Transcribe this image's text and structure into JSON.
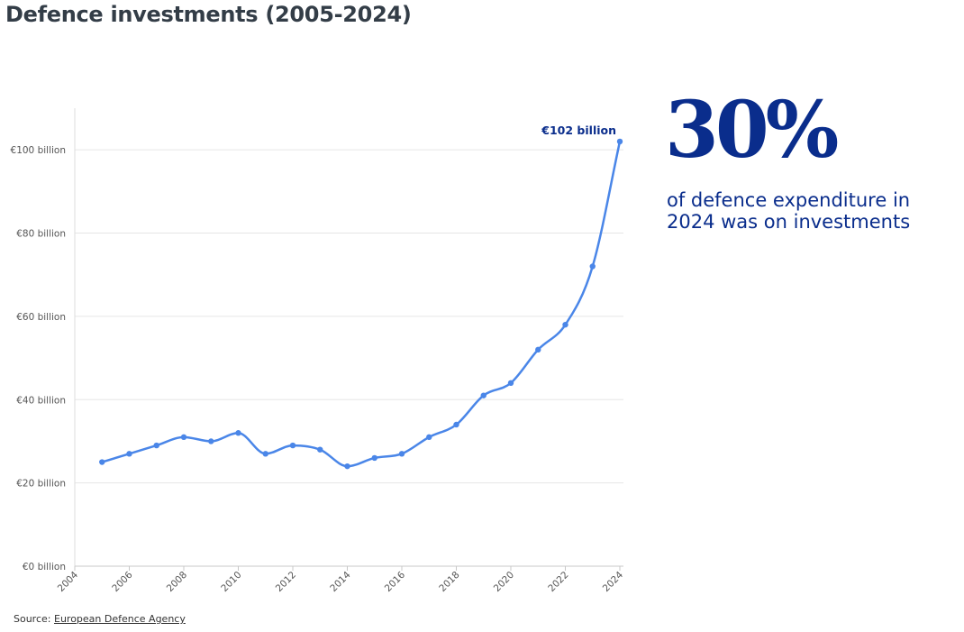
{
  "title": "Defence investments (2005-2024)",
  "highlight": {
    "value": "30%",
    "caption": "of defence expenditure in 2024 was on investments"
  },
  "source": {
    "prefix": "Source:",
    "link_text": "European Defence Agency"
  },
  "colors": {
    "line": "#4a86e8",
    "accent": "#0a2d8c",
    "grid": "#e6e6e6"
  },
  "chart_data": {
    "type": "line",
    "x": [
      2005,
      2006,
      2007,
      2008,
      2009,
      2010,
      2011,
      2012,
      2013,
      2014,
      2015,
      2016,
      2017,
      2018,
      2019,
      2020,
      2021,
      2022,
      2023,
      2024
    ],
    "series": [
      {
        "values": [
          25,
          27,
          29,
          31,
          30,
          32,
          27,
          29,
          28,
          24,
          26,
          27,
          31,
          34,
          41,
          44,
          52,
          58,
          72,
          102
        ]
      }
    ],
    "xlim": [
      2004,
      2024
    ],
    "ylim": [
      0,
      110
    ],
    "x_ticks": [
      "2004",
      "2006",
      "2008",
      "2010",
      "2012",
      "2014",
      "2016",
      "2018",
      "2020",
      "2022",
      "2024"
    ],
    "y_ticks": [
      {
        "value": 0,
        "label": "€0 billion"
      },
      {
        "value": 20,
        "label": "€20 billion"
      },
      {
        "value": 40,
        "label": "€40 billion"
      },
      {
        "value": 60,
        "label": "€60 billion"
      },
      {
        "value": 80,
        "label": "€80 billion"
      },
      {
        "value": 100,
        "label": "€100 billion"
      }
    ],
    "annotation": {
      "x": 2024,
      "y": 102,
      "text": "€102 billion"
    },
    "grid": true
  }
}
